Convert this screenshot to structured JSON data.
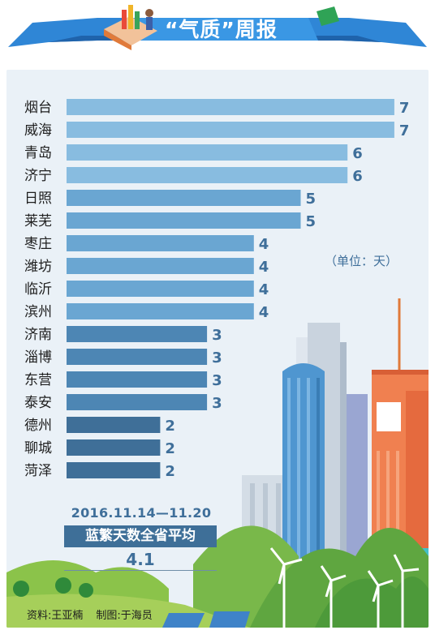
{
  "header": {
    "title": "“气质”周报"
  },
  "unit_note": "（单位：天）",
  "period": "2016.11.14—11.20",
  "average": {
    "label": "蓝繁天数全省平均",
    "value": "4.1"
  },
  "credits": {
    "data": "资料:王亚楠",
    "design": "制图:于海员"
  },
  "colors": {
    "banner": "#2f86d6",
    "bar_light": "#88bce0",
    "bar_mid": "#6aa6d2",
    "bar_dark": "#4d86b4",
    "bar_darkest": "#3f6f98",
    "value_text": "#3f6f9a"
  },
  "chart_data": {
    "type": "bar",
    "orientation": "horizontal",
    "categories": [
      "烟台",
      "威海",
      "青岛",
      "济宁",
      "日照",
      "莱芜",
      "枣庄",
      "潍坊",
      "临沂",
      "滨州",
      "济南",
      "淄博",
      "东营",
      "泰安",
      "德州",
      "聊城",
      "菏泽"
    ],
    "values": [
      7,
      7,
      6,
      6,
      5,
      5,
      4,
      4,
      4,
      4,
      3,
      3,
      3,
      3,
      2,
      2,
      2
    ],
    "xlim": [
      0,
      7
    ]
  }
}
